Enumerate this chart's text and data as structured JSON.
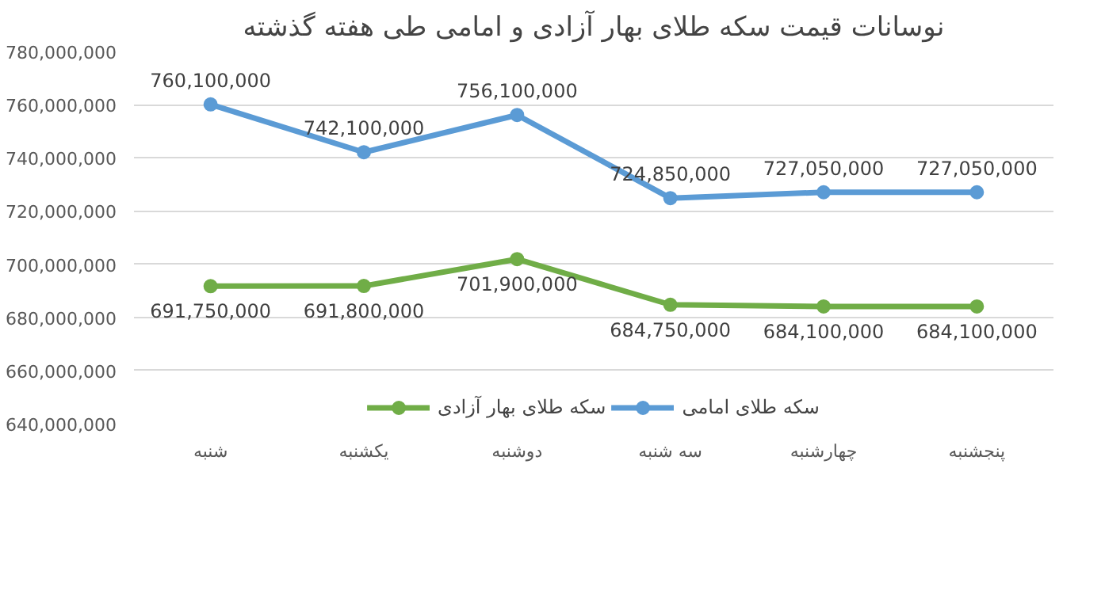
{
  "chart_data": {
    "type": "line",
    "title": "نوسانات قیمت سکه طلای بهار آزادی و امامی طی هفته گذشته",
    "categories": [
      "شنبه",
      "یکشنبه",
      "دوشنبه",
      "سه شنبه",
      "چهارشنبه",
      "پنجشنبه"
    ],
    "series": [
      {
        "name": "سکه طلای بهار آزادی",
        "color": "#70ad47",
        "values": [
          691750000,
          691800000,
          701900000,
          684750000,
          684100000,
          684100000
        ],
        "value_labels": [
          "691,750,000",
          "691,800,000",
          "701,900,000",
          "684,750,000",
          "684,100,000",
          "684,100,000"
        ]
      },
      {
        "name": "سکه طلای امامی",
        "color": "#5b9bd5",
        "values": [
          760100000,
          742100000,
          756100000,
          724850000,
          727050000,
          727050000
        ],
        "value_labels": [
          "760,100,000",
          "742,100,000",
          "756,100,000",
          "724,850,000",
          "727,050,000",
          "727,050,000"
        ]
      }
    ],
    "ylim": [
      640000000,
      780000000
    ],
    "yticks": [
      {
        "value": 640000000,
        "label": "640,000,000"
      },
      {
        "value": 660000000,
        "label": "660,000,000"
      },
      {
        "value": 680000000,
        "label": "680,000,000"
      },
      {
        "value": 700000000,
        "label": "700,000,000"
      },
      {
        "value": 720000000,
        "label": "720,000,000"
      },
      {
        "value": 740000000,
        "label": "740,000,000"
      },
      {
        "value": 760000000,
        "label": "760,000,000"
      },
      {
        "value": 780000000,
        "label": "780,000,000"
      }
    ],
    "grid": "y",
    "legend": "bottom",
    "marker": "circle",
    "line_style": "solid"
  }
}
